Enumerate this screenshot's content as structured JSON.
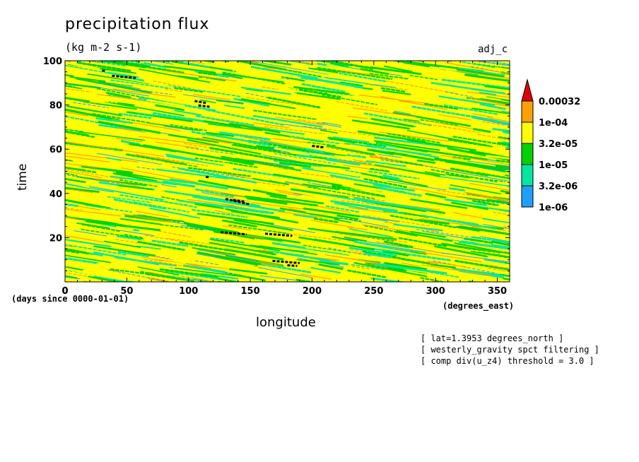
{
  "chart_data": {
    "type": "heatmap",
    "title": "precipitation flux",
    "units": "(kg m-2 s-1)",
    "run_label": "adj_c",
    "xlabel": "longitude",
    "ylabel": "time",
    "x_units": "(degrees_east)",
    "y_units": "(days since 0000-01-01)",
    "xlim": [
      0,
      360
    ],
    "ylim": [
      0,
      100
    ],
    "x_ticks": [
      "0",
      "50",
      "100",
      "150",
      "200",
      "250",
      "300",
      "350"
    ],
    "y_ticks": [
      "20",
      "40",
      "60",
      "80",
      "100"
    ],
    "colorbar": {
      "levels": [
        "1e-06",
        "3.2e-06",
        "1e-05",
        "3.2e-05",
        "1e-04",
        "0.00032"
      ],
      "colors": [
        "#1ea0ff",
        "#00e8a0",
        "#00d400",
        "#ffff00",
        "#ffa000",
        "#e00000"
      ]
    },
    "notes": [
      "[ lat=1.3953 degrees_north ]",
      "[ westerly_gravity spct filtering ]",
      "[ comp div(u_z4) threshold = 3.0 ]"
    ]
  }
}
